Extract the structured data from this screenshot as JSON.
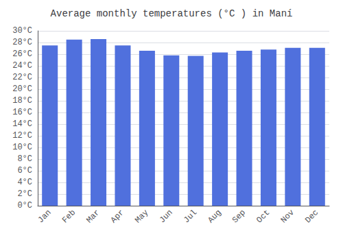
{
  "chart_data": {
    "type": "bar",
    "title": "Average monthly temperatures (°C ) in Maní",
    "categories": [
      "Jan",
      "Feb",
      "Mar",
      "Apr",
      "May",
      "Jun",
      "Jul",
      "Aug",
      "Sep",
      "Oct",
      "Nov",
      "Dec"
    ],
    "values": [
      27.5,
      28.5,
      28.6,
      27.5,
      26.6,
      25.8,
      25.7,
      26.3,
      26.6,
      26.8,
      27.1,
      27.1
    ],
    "ylim": [
      0,
      30
    ],
    "yticks": [
      {
        "value": 0,
        "label": "0°C"
      },
      {
        "value": 2,
        "label": "2°C"
      },
      {
        "value": 4,
        "label": "4°C"
      },
      {
        "value": 6,
        "label": "6°C"
      },
      {
        "value": 8,
        "label": "8°C"
      },
      {
        "value": 10,
        "label": "10°C"
      },
      {
        "value": 12,
        "label": "12°C"
      },
      {
        "value": 14,
        "label": "14°C"
      },
      {
        "value": 16,
        "label": "16°C"
      },
      {
        "value": 18,
        "label": "18°C"
      },
      {
        "value": 20,
        "label": "20°C"
      },
      {
        "value": 22,
        "label": "22°C"
      },
      {
        "value": 24,
        "label": "24°C"
      },
      {
        "value": 26,
        "label": "26°C"
      },
      {
        "value": 28,
        "label": "28°C"
      },
      {
        "value": 30,
        "label": "30°C"
      }
    ],
    "grid": true
  }
}
